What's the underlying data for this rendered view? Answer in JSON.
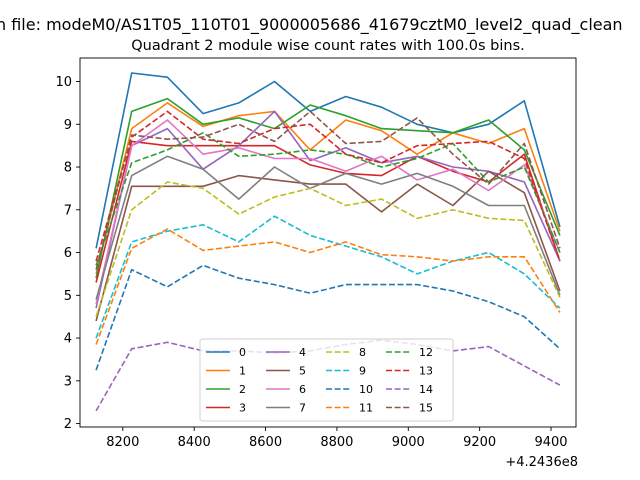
{
  "figure": {
    "suptitle": "n file: modeM0/AS1T05_110T01_9000005686_41679cztM0_level2_quad_clean",
    "background": "#ffffff"
  },
  "chart_data": {
    "type": "line",
    "title": "Quadrant 2 module wise count rates with 100.0s bins.",
    "xlabel": "",
    "ylabel": "",
    "x_offset_label": "+4.2436e8",
    "x": [
      8125,
      8225,
      8325,
      8425,
      8525,
      8625,
      8725,
      8825,
      8925,
      9025,
      9125,
      9225,
      9325,
      9425
    ],
    "xlim": [
      8080,
      9470
    ],
    "ylim": [
      1.92,
      10.55
    ],
    "xticks": [
      8200,
      8400,
      8600,
      8800,
      9000,
      9200,
      9400
    ],
    "xtick_labels": [
      "8200",
      "8400",
      "8600",
      "8800",
      "9000",
      "9200",
      "9400"
    ],
    "yticks": [
      2,
      3,
      4,
      5,
      6,
      7,
      8,
      9,
      10
    ],
    "ytick_labels": [
      "2",
      "3",
      "4",
      "5",
      "6",
      "7",
      "8",
      "9",
      "10"
    ],
    "grid": false,
    "legend": {
      "placement": "bottom-center",
      "columns": 4
    },
    "series": [
      {
        "name": "0",
        "color": "#1f77b4",
        "style": "solid",
        "values": [
          6.1,
          10.2,
          10.1,
          9.25,
          9.5,
          10.0,
          9.3,
          9.65,
          9.4,
          9.0,
          8.8,
          9.0,
          9.55,
          6.6
        ]
      },
      {
        "name": "1",
        "color": "#ff7f0e",
        "style": "solid",
        "values": [
          5.5,
          8.9,
          9.5,
          8.95,
          9.2,
          9.3,
          8.4,
          9.1,
          8.85,
          8.3,
          8.8,
          8.55,
          8.9,
          6.5
        ]
      },
      {
        "name": "2",
        "color": "#2ca02c",
        "style": "solid",
        "values": [
          5.4,
          9.3,
          9.6,
          9.0,
          9.15,
          8.9,
          9.45,
          9.2,
          8.9,
          8.85,
          8.8,
          9.1,
          8.4,
          6.4
        ]
      },
      {
        "name": "3",
        "color": "#d62728",
        "style": "solid",
        "values": [
          5.3,
          8.6,
          8.5,
          8.5,
          8.5,
          8.5,
          8.05,
          7.85,
          7.8,
          8.25,
          7.9,
          7.65,
          8.3,
          5.8
        ]
      },
      {
        "name": "4",
        "color": "#9467bd",
        "style": "solid",
        "values": [
          4.7,
          8.5,
          8.9,
          7.95,
          8.5,
          9.3,
          8.15,
          8.45,
          8.1,
          8.25,
          8.0,
          7.9,
          7.65,
          5.8
        ]
      },
      {
        "name": "5",
        "color": "#8c564b",
        "style": "solid",
        "values": [
          4.4,
          7.55,
          7.55,
          7.55,
          7.8,
          7.7,
          7.6,
          7.6,
          6.95,
          7.6,
          7.1,
          7.9,
          7.4,
          5.1
        ]
      },
      {
        "name": "6",
        "color": "#e377c2",
        "style": "solid",
        "values": [
          4.8,
          8.5,
          9.1,
          8.3,
          8.45,
          8.2,
          8.2,
          7.9,
          8.25,
          7.7,
          7.95,
          7.45,
          8.05,
          6.0
        ]
      },
      {
        "name": "7",
        "color": "#7f7f7f",
        "style": "solid",
        "values": [
          4.9,
          7.8,
          8.25,
          7.95,
          7.25,
          8.0,
          7.5,
          7.85,
          7.6,
          7.85,
          7.55,
          7.1,
          7.1,
          5.0
        ]
      },
      {
        "name": "8",
        "color": "#bcbd22",
        "style": "dashed",
        "values": [
          4.5,
          7.0,
          7.65,
          7.5,
          6.9,
          7.3,
          7.5,
          7.1,
          7.25,
          6.8,
          7.0,
          6.8,
          6.75,
          4.95
        ]
      },
      {
        "name": "9",
        "color": "#17becf",
        "style": "dashed",
        "values": [
          4.0,
          6.25,
          6.5,
          6.65,
          6.25,
          6.85,
          6.4,
          6.15,
          5.9,
          5.5,
          5.8,
          6.0,
          5.5,
          4.7
        ]
      },
      {
        "name": "10",
        "color": "#1f77b4",
        "style": "dashed",
        "values": [
          3.25,
          5.6,
          5.2,
          5.7,
          5.4,
          5.25,
          5.05,
          5.25,
          5.25,
          5.25,
          5.1,
          4.85,
          4.5,
          3.75
        ]
      },
      {
        "name": "11",
        "color": "#ff7f0e",
        "style": "dashed",
        "values": [
          3.85,
          6.1,
          6.55,
          6.05,
          6.15,
          6.25,
          6.0,
          6.25,
          5.95,
          5.9,
          5.8,
          5.9,
          5.9,
          4.6
        ]
      },
      {
        "name": "12",
        "color": "#2ca02c",
        "style": "dashed",
        "values": [
          5.7,
          8.1,
          8.4,
          8.8,
          8.25,
          8.3,
          8.4,
          8.3,
          8.0,
          8.2,
          8.55,
          7.65,
          8.0,
          6.0
        ]
      },
      {
        "name": "13",
        "color": "#d62728",
        "style": "dashed",
        "values": [
          5.8,
          8.7,
          9.3,
          8.65,
          8.55,
          8.9,
          9.0,
          8.3,
          8.1,
          8.5,
          8.55,
          8.6,
          8.2,
          5.8
        ]
      },
      {
        "name": "14",
        "color": "#9467bd",
        "style": "dashed",
        "values": [
          2.3,
          3.75,
          3.9,
          3.7,
          3.7,
          3.65,
          3.7,
          3.85,
          3.95,
          3.85,
          3.7,
          3.8,
          3.35,
          2.9
        ]
      },
      {
        "name": "15",
        "color": "#8c564b",
        "style": "dashed",
        "values": [
          5.6,
          8.75,
          8.65,
          8.7,
          9.0,
          8.6,
          9.3,
          8.55,
          8.6,
          9.15,
          8.3,
          7.6,
          8.55,
          6.1
        ]
      }
    ]
  }
}
